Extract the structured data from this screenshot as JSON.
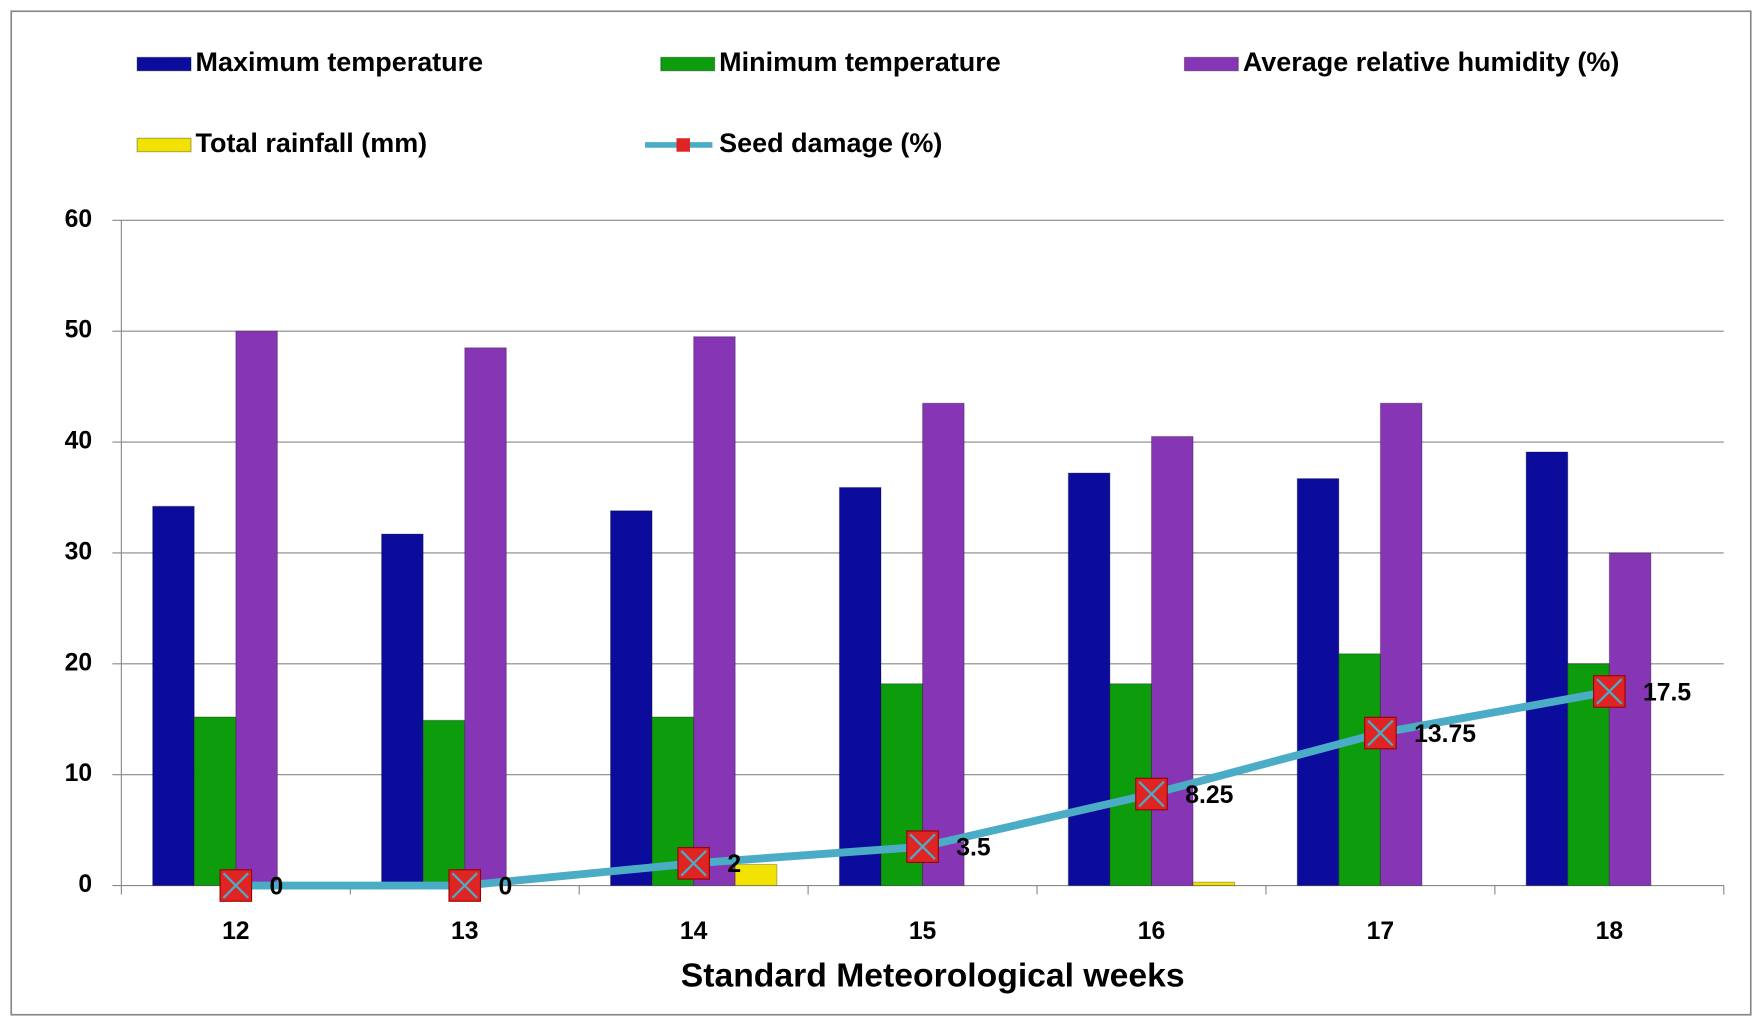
{
  "chart_data": {
    "type": "bar",
    "x_label": "Standard Meteorological weeks",
    "categories": [
      "12",
      "13",
      "14",
      "15",
      "16",
      "17",
      "18"
    ],
    "series": [
      {
        "name": "Maximum temperature",
        "color": "#0b0b9c",
        "values": [
          34.2,
          31.7,
          33.8,
          35.9,
          37.2,
          36.7,
          39.1
        ]
      },
      {
        "name": "Minimum temperature",
        "color": "#0c9c0c",
        "values": [
          15.2,
          14.9,
          15.2,
          18.2,
          18.2,
          20.9,
          20.0
        ]
      },
      {
        "name": "Average relative humidity (%)",
        "color": "#8636b4",
        "values": [
          50,
          48.5,
          49.5,
          43.5,
          40.5,
          43.5,
          30
        ]
      },
      {
        "name": "Total rainfall (mm)",
        "color": "#f2e200",
        "values": [
          0,
          0,
          1.9,
          0,
          0.3,
          0,
          0
        ]
      },
      {
        "name": "Seed damage (%)",
        "type": "line",
        "color": "#4bacc6",
        "marker_color": "#e02424",
        "values": [
          0,
          0,
          2,
          3.5,
          8.25,
          13.75,
          17.5
        ]
      }
    ],
    "ylim": [
      0,
      60
    ],
    "yticks": [
      0,
      10,
      20,
      30,
      40,
      50,
      60
    ],
    "grid": true
  }
}
